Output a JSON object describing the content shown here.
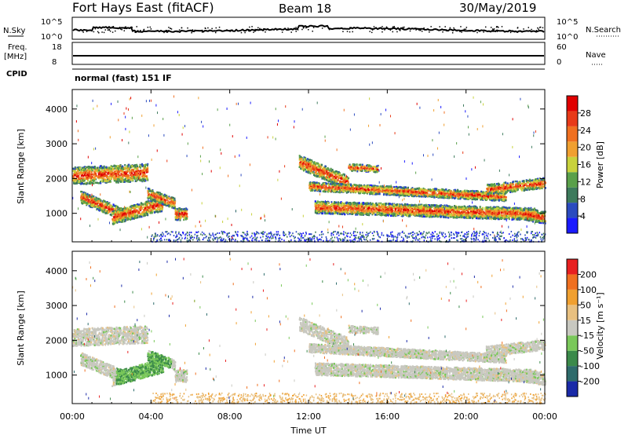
{
  "header": {
    "station": "Fort Hays East (fitACF)",
    "beam": "Beam 18",
    "date": "30/May/2019"
  },
  "top_panels": {
    "sky_label": "N.Sky",
    "sky_ticks": [
      "10^5",
      "10^0"
    ],
    "search_label": "N.Search",
    "freq_label": "Freq.",
    "freq_unit": "[MHz]",
    "freq_ticks": [
      "18",
      "8"
    ],
    "nave_label": "Nave",
    "nave_ticks": [
      "60",
      "0"
    ],
    "cpid_label": "CPID",
    "cpid_value": "normal (fast) 151 IF"
  },
  "colors": {
    "power_bar": [
      "#1a1aff",
      "#2b4bbf",
      "#3d7a5c",
      "#5aa04a",
      "#c8d23c",
      "#f0a030",
      "#f07020",
      "#e83a18",
      "#e00000"
    ],
    "velocity_bar": [
      "#1a2aa8",
      "#2e6b6b",
      "#3b8a4a",
      "#7ac85a",
      "#c8c8c0",
      "#e8c080",
      "#f0a030",
      "#f07020",
      "#e82020"
    ]
  },
  "chart_data": [
    {
      "type": "heatmap",
      "title": "Power",
      "xlabel": "",
      "ylabel": "Slant Range [km]",
      "x_ticks": [
        "00:00",
        "04:00",
        "08:00",
        "12:00",
        "16:00",
        "20:00",
        "00:00"
      ],
      "y_ticks": [
        "1000",
        "2000",
        "3000",
        "4000"
      ],
      "ylim": [
        180,
        4560
      ],
      "colorbar_label": "Power [dB]",
      "colorbar_ticks": [
        "4",
        "8",
        "12",
        "16",
        "20",
        "24",
        "28"
      ]
    },
    {
      "type": "heatmap",
      "title": "Velocity",
      "xlabel": "Time UT",
      "ylabel": "Slant Range [km]",
      "x_ticks": [
        "00:00",
        "04:00",
        "08:00",
        "12:00",
        "16:00",
        "20:00",
        "00:00"
      ],
      "y_ticks": [
        "1000",
        "2000",
        "3000",
        "4000"
      ],
      "ylim": [
        180,
        4560
      ],
      "colorbar_label": "Velocity [m s⁻¹]",
      "colorbar_ticks": [
        "200",
        "100",
        "50",
        "15",
        "-15",
        "-50",
        "-100",
        "-200"
      ]
    }
  ]
}
